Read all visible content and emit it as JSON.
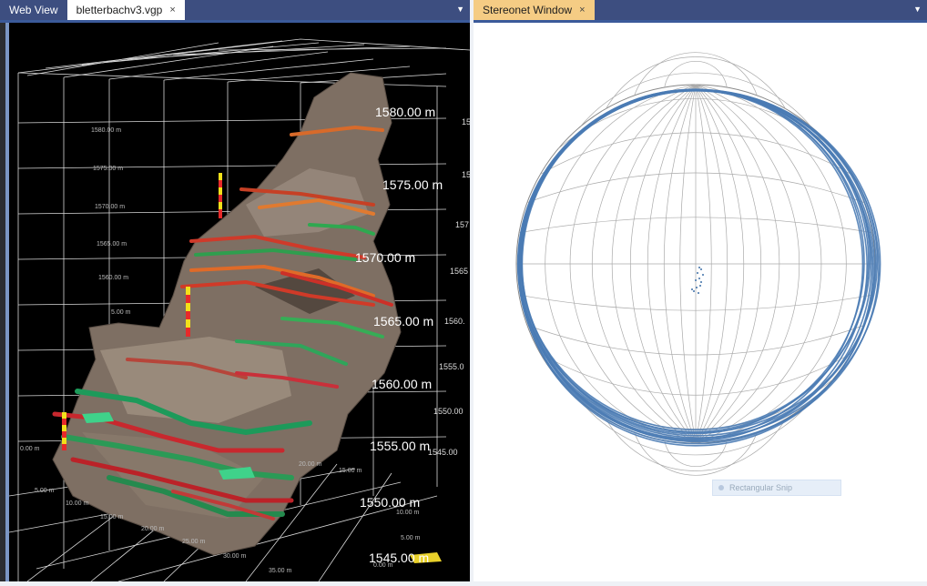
{
  "left_tabs": [
    {
      "label": "Web View",
      "active": false
    },
    {
      "label": "bletterbachv3.vgp",
      "active": true,
      "closable": true
    }
  ],
  "right_tabs": [
    {
      "label": "Stereonet Window",
      "active": true,
      "closable": true
    }
  ],
  "close_glyph": "×",
  "dropdown_glyph": "▼",
  "viewport": {
    "elevation_labels": [
      "1580.00 m",
      "1575.00 m",
      "1570.00 m",
      "1565.00 m",
      "1560.00 m",
      "1555.00 m",
      "1550.00 m",
      "1545.00 m"
    ],
    "left_axis_labels": [
      "1580.00 m",
      "1575.00 m",
      "1570.00 m",
      "1565.00 m",
      "1560.00 m",
      "5.00 m",
      "0.00 m"
    ],
    "right_edge_labels": [
      "15",
      "15",
      "157",
      "1565",
      "1560.",
      "1555.0",
      "1550.00",
      "1545.00"
    ],
    "bottom_axis_labels": [
      "5.00 m",
      "10.00 m",
      "15.00 m",
      "20.00 m",
      "25.00 m",
      "30.00 m",
      "35.00 m",
      "20.00 m",
      "15.00 m",
      "10.00 m",
      "5.00 m",
      "0.00 m"
    ]
  },
  "stereonet": {
    "rectangular_snip_label": "Rectangular Snip",
    "great_circle_color": "#4a7bb4",
    "pole_color": "#3d6fa8"
  }
}
